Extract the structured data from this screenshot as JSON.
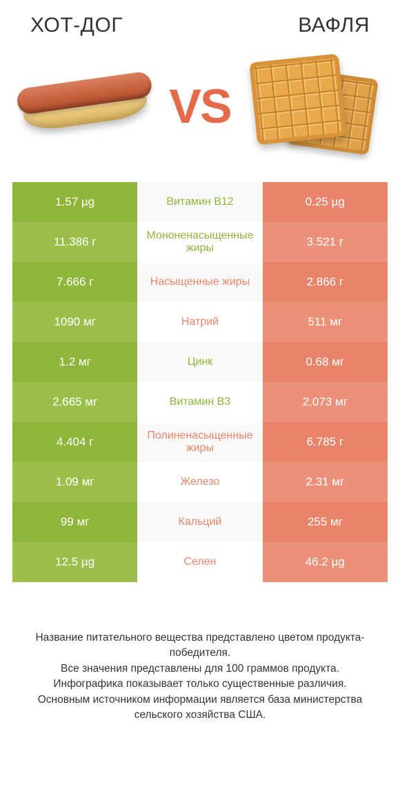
{
  "colors": {
    "left": "#8fb53b",
    "left_alt": "#9bbf4a",
    "right": "#e8846a",
    "right_alt": "#ec9179",
    "vs": "#e36b4a",
    "text": "#333333"
  },
  "titles": {
    "left": "ХОТ-ДОГ",
    "right": "ВАФЛЯ"
  },
  "vs_label": "VS",
  "rows": [
    {
      "label": "Витамин B12",
      "left": "1.57 µg",
      "right": "0.25 µg",
      "winner": "left"
    },
    {
      "label": "Мононенасыщенные жиры",
      "left": "11.386 г",
      "right": "3.521 г",
      "winner": "left"
    },
    {
      "label": "Насыщенные жиры",
      "left": "7.666 г",
      "right": "2.866 г",
      "winner": "right"
    },
    {
      "label": "Натрий",
      "left": "1090 мг",
      "right": "511 мг",
      "winner": "right"
    },
    {
      "label": "Цинк",
      "left": "1.2 мг",
      "right": "0.68 мг",
      "winner": "left"
    },
    {
      "label": "Витамин B3",
      "left": "2.665 мг",
      "right": "2.073 мг",
      "winner": "left"
    },
    {
      "label": "Полиненасыщенные жиры",
      "left": "4.404 г",
      "right": "6.785 г",
      "winner": "right"
    },
    {
      "label": "Железо",
      "left": "1.09 мг",
      "right": "2.31 мг",
      "winner": "right"
    },
    {
      "label": "Кальций",
      "left": "99 мг",
      "right": "255 мг",
      "winner": "right"
    },
    {
      "label": "Селен",
      "left": "12.5 µg",
      "right": "46.2 µg",
      "winner": "right"
    }
  ],
  "footer": [
    "Название питательного вещества представлено цветом продукта-победителя.",
    "Все значения представлены для 100 граммов продукта.",
    "Инфографика показывает только существенные различия.",
    "Основным источником информации является база министерства сельского хозяйства США."
  ]
}
